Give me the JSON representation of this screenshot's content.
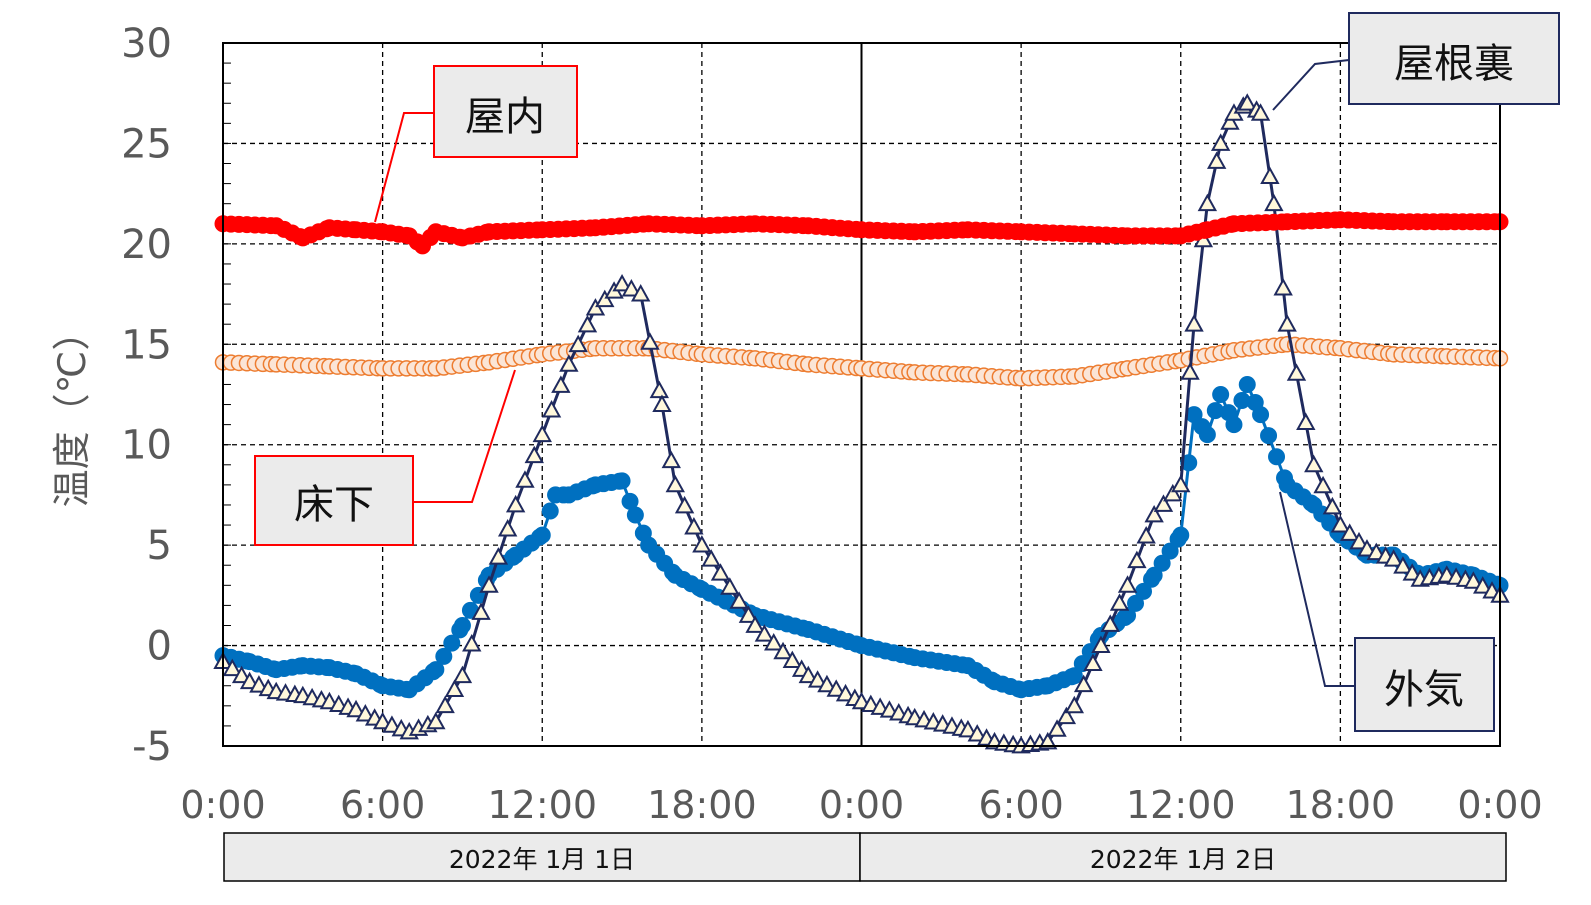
{
  "chart_data": {
    "type": "line",
    "ylabel": "温度（℃）",
    "xlabel": "",
    "ylim": [
      -5,
      30
    ],
    "yticks": [
      "30",
      "25",
      "20",
      "15",
      "10",
      "5",
      "0",
      "-5"
    ],
    "x_range_hours": [
      0,
      48
    ],
    "xtick_labels": [
      "0:00",
      "6:00",
      "12:00",
      "18:00",
      "0:00",
      "6:00",
      "12:00",
      "18:00",
      "0:00"
    ],
    "date_labels": [
      "2022年  1月  1日",
      "2022年  1月  2日"
    ],
    "grid": true,
    "series": [
      {
        "name": "屋内",
        "color": "#ff0000",
        "marker": "circle-filled",
        "x": [
          0,
          2,
          3,
          4,
          5,
          6,
          7,
          7.5,
          8,
          9,
          10,
          12,
          14,
          16,
          18,
          20,
          22,
          24,
          26,
          28,
          30,
          32,
          34,
          36,
          37,
          38,
          40,
          42,
          44,
          46,
          48
        ],
        "y": [
          21.0,
          20.9,
          20.3,
          20.8,
          20.7,
          20.6,
          20.4,
          19.9,
          20.6,
          20.3,
          20.6,
          20.7,
          20.8,
          21.0,
          20.9,
          21.0,
          20.9,
          20.7,
          20.6,
          20.7,
          20.6,
          20.5,
          20.4,
          20.4,
          20.7,
          21.0,
          21.1,
          21.2,
          21.1,
          21.1,
          21.1
        ]
      },
      {
        "name": "床下",
        "color": "#ed7d31",
        "marker": "circle-open",
        "x": [
          0,
          2,
          4,
          6,
          8,
          10,
          12,
          14,
          16,
          18,
          20,
          22,
          24,
          26,
          28,
          30,
          32,
          34,
          36,
          38,
          40,
          42,
          44,
          46,
          48
        ],
        "y": [
          14.1,
          14.0,
          13.9,
          13.8,
          13.8,
          14.1,
          14.5,
          14.8,
          14.8,
          14.5,
          14.3,
          14.0,
          13.8,
          13.6,
          13.5,
          13.3,
          13.4,
          13.8,
          14.2,
          14.7,
          15.0,
          14.8,
          14.5,
          14.4,
          14.3
        ]
      },
      {
        "name": "外気",
        "color": "#0070c0",
        "marker": "circle-filled",
        "x": [
          0,
          1,
          2,
          3,
          4,
          5,
          6,
          7,
          8,
          9,
          10,
          11,
          12,
          12.5,
          13,
          14,
          15,
          15.5,
          16,
          17,
          18,
          20,
          22,
          24,
          26,
          28,
          29,
          30,
          31,
          32,
          33,
          34,
          35,
          36,
          36.5,
          37,
          37.5,
          38,
          38.5,
          39,
          40,
          41,
          42,
          43,
          44,
          45,
          46,
          47,
          48
        ],
        "y": [
          -0.5,
          -0.8,
          -1.2,
          -1.0,
          -1.1,
          -1.4,
          -2.0,
          -2.2,
          -1.2,
          1.0,
          3.5,
          4.5,
          5.5,
          7.5,
          7.5,
          8.0,
          8.2,
          6.5,
          5.0,
          3.5,
          2.8,
          1.5,
          0.8,
          0.0,
          -0.6,
          -1.0,
          -1.8,
          -2.2,
          -2.0,
          -1.5,
          0.5,
          1.5,
          3.5,
          5.5,
          11.5,
          10.5,
          12.5,
          11.0,
          13.0,
          11.5,
          8.0,
          7.0,
          5.5,
          4.5,
          4.5,
          3.5,
          3.8,
          3.5,
          3.0
        ]
      },
      {
        "name": "屋根裏",
        "color": "#1f2a5e",
        "marker": "triangle-open",
        "x": [
          0,
          1,
          2,
          3,
          4,
          5,
          6,
          7,
          8,
          9,
          10,
          11,
          12,
          13,
          14,
          15,
          15.7,
          16.5,
          17,
          18,
          20,
          22,
          24,
          26,
          28,
          29,
          30,
          31,
          32,
          33,
          34,
          35,
          36,
          36.5,
          37,
          37.5,
          38,
          38.5,
          39,
          39.5,
          40,
          41,
          42,
          43,
          44,
          45,
          46,
          47,
          48
        ],
        "y": [
          -0.8,
          -1.8,
          -2.3,
          -2.5,
          -2.8,
          -3.2,
          -3.8,
          -4.3,
          -3.8,
          -1.5,
          3.0,
          7.0,
          10.5,
          14.0,
          16.8,
          18.0,
          17.5,
          12.0,
          8.0,
          5.0,
          1.0,
          -1.5,
          -2.8,
          -3.6,
          -4.2,
          -4.8,
          -5.0,
          -4.8,
          -3.0,
          0.0,
          3.0,
          6.5,
          8.0,
          16.0,
          22.0,
          25.0,
          26.5,
          27.0,
          26.5,
          22.0,
          16.0,
          9.0,
          6.0,
          4.8,
          4.3,
          3.3,
          3.5,
          3.2,
          2.5
        ]
      }
    ],
    "callouts": [
      {
        "text": "屋内",
        "series": "屋内",
        "border_color": "#ff0000"
      },
      {
        "text": "床下",
        "series": "床下",
        "border_color": "#ff0000"
      },
      {
        "text": "屋根裏",
        "series": "屋根裏",
        "border_color": "#1f2a5e"
      },
      {
        "text": "外気",
        "series": "外気",
        "border_color": "#1f2a5e"
      }
    ]
  }
}
